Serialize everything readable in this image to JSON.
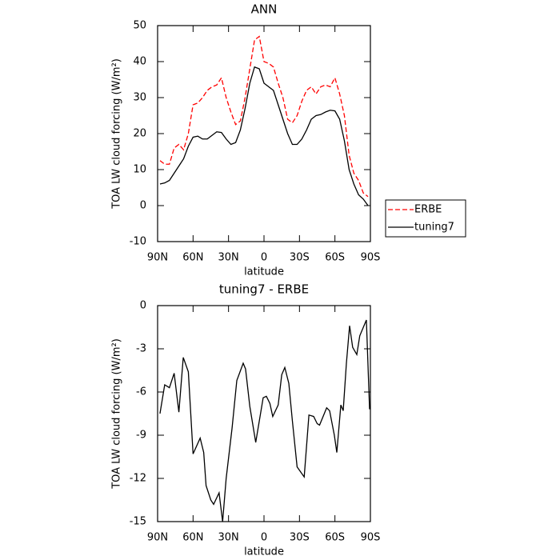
{
  "chart_data": [
    {
      "type": "line",
      "title": "ANN",
      "xlabel": "latitude",
      "ylabel": "TOA LW cloud forcing (W/m²)",
      "x": [
        88,
        84,
        80,
        76,
        72,
        68,
        64,
        60,
        56,
        52,
        48,
        44,
        40,
        36,
        32,
        28,
        24,
        20,
        16,
        12,
        8,
        4,
        0,
        -4,
        -8,
        -12,
        -16,
        -20,
        -24,
        -28,
        -32,
        -36,
        -40,
        -44,
        -48,
        -52,
        -56,
        -60,
        -64,
        -68,
        -72,
        -76,
        -80,
        -84,
        -88
      ],
      "series": [
        {
          "name": "ERBE",
          "color": "#ff0000",
          "linestyle": "dashed",
          "values": [
            12.5,
            11.5,
            11.5,
            16,
            17,
            15.5,
            20,
            28,
            28.5,
            30,
            32,
            33,
            33.5,
            35.5,
            30,
            26,
            22.5,
            23.5,
            30,
            38,
            46,
            47,
            40,
            39.5,
            38.5,
            34,
            30,
            24,
            23,
            25,
            29,
            32,
            33,
            31,
            33,
            33.5,
            33,
            35.5,
            31,
            25,
            14,
            9,
            7,
            3.5,
            2.5
          ]
        },
        {
          "name": "tuning7",
          "color": "#000000",
          "linestyle": "solid",
          "values": [
            6,
            6.3,
            7,
            9,
            11,
            13,
            16.5,
            19,
            19.3,
            18.5,
            18.5,
            19.5,
            20.5,
            20.3,
            18.5,
            17,
            17.5,
            21,
            27,
            34,
            38.5,
            38,
            34,
            33,
            32,
            28,
            24,
            20,
            17,
            17,
            18.5,
            21,
            24,
            25,
            25.3,
            26,
            26.5,
            26.3,
            24,
            18,
            10,
            6,
            3,
            1.8,
            0
          ]
        }
      ],
      "xlim": [
        90,
        -90
      ],
      "xticks": [
        {
          "value": 90,
          "label": "90N"
        },
        {
          "value": 60,
          "label": "60N"
        },
        {
          "value": 30,
          "label": "30N"
        },
        0,
        {
          "value": -30,
          "label": "30S"
        },
        {
          "value": -60,
          "label": "60S"
        },
        {
          "value": -90,
          "label": "90S"
        }
      ],
      "ylim": [
        -10,
        50
      ],
      "yticks": [
        -10,
        0,
        10,
        20,
        30,
        40,
        50
      ],
      "legend": "right"
    },
    {
      "type": "line",
      "title": "tuning7 - ERBE",
      "xlabel": "latitude",
      "ylabel": "TOA LW cloud forcing (W/m²)",
      "x": [
        88,
        84,
        80,
        76,
        72,
        68.3,
        64,
        60,
        54,
        51,
        49,
        45,
        42.6,
        38,
        35,
        32,
        27,
        23,
        17.6,
        15.6,
        12,
        7,
        0.7,
        -2,
        -5,
        -7.4,
        -12,
        -15,
        -17.6,
        -21,
        -24,
        -28,
        -34,
        -38,
        -42,
        -45,
        -47,
        -53,
        -55.5,
        -59.5,
        -61.6,
        -65,
        -67,
        -69.7,
        -72.4,
        -75,
        -78.5,
        -81,
        -86.6,
        -89.3
      ],
      "series": [
        {
          "color": "#000000",
          "linestyle": "solid",
          "values": [
            -7.5,
            -5.5,
            -5.7,
            -4.7,
            -7.4,
            -3.6,
            -4.6,
            -10.3,
            -9.2,
            -10.2,
            -12.5,
            -13.5,
            -13.8,
            -13,
            -15,
            -12,
            -8.5,
            -5.2,
            -4,
            -4.4,
            -7,
            -9.5,
            -6.4,
            -6.3,
            -6.8,
            -7.7,
            -6.9,
            -4.8,
            -4.3,
            -5.4,
            -8,
            -11.2,
            -11.9,
            -7.6,
            -7.7,
            -8.2,
            -8.3,
            -7.1,
            -7.3,
            -9,
            -10.2,
            -6.9,
            -7.3,
            -4,
            -1.4,
            -2.9,
            -3.4,
            -2.1,
            -1,
            -7.2
          ]
        }
      ],
      "xlim": [
        90,
        -90
      ],
      "xticks": [
        {
          "value": 90,
          "label": "90N"
        },
        {
          "value": 60,
          "label": "60N"
        },
        {
          "value": 30,
          "label": "30N"
        },
        0,
        {
          "value": -30,
          "label": "30S"
        },
        {
          "value": -60,
          "label": "60S"
        },
        {
          "value": -90,
          "label": "90S"
        }
      ],
      "ylim": [
        -15,
        0
      ],
      "yticks": [
        -15,
        -12,
        -9,
        -6,
        -3,
        0
      ]
    }
  ]
}
